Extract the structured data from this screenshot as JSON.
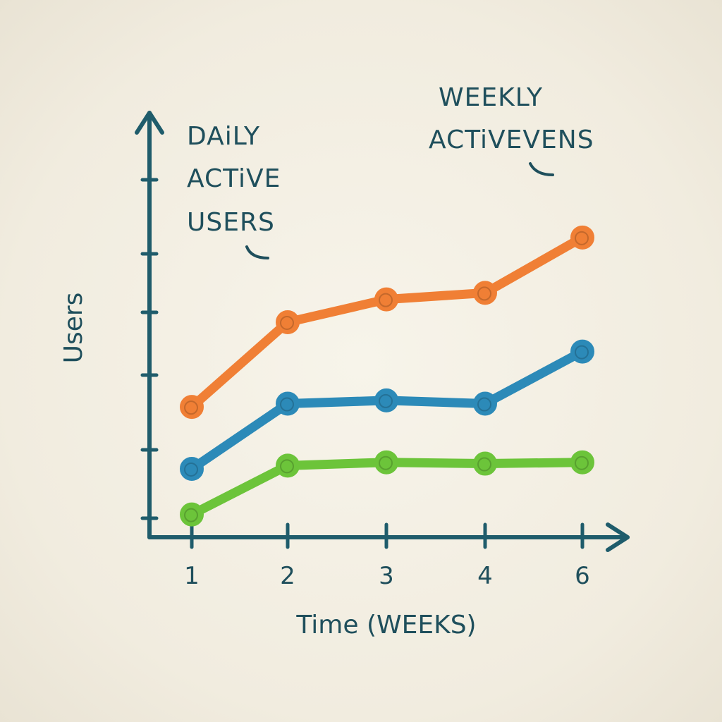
{
  "chart_data": {
    "type": "line",
    "categories": [
      "1",
      "2",
      "3",
      "4",
      "6"
    ],
    "xlabel": "Time (WEEKS)",
    "ylabel": "Users",
    "ylim": [
      0,
      7
    ],
    "grid": false,
    "series": [
      {
        "values": [
          2.0,
          3.3,
          3.65,
          3.75,
          4.6
        ],
        "color": "#f07f35"
      },
      {
        "values": [
          1.05,
          2.05,
          2.1,
          2.05,
          2.85
        ],
        "color": "#2c8ab8"
      },
      {
        "values": [
          0.35,
          1.1,
          1.15,
          1.13,
          1.15
        ],
        "color": "#6cc43a"
      }
    ],
    "annotations": [
      {
        "lines": [
          "DAiLY",
          "ACTiVE",
          "USERS"
        ]
      },
      {
        "lines": [
          "WEEKLY",
          "ACTiVEVENS"
        ]
      }
    ],
    "axis_color": "#1f5c6b"
  }
}
